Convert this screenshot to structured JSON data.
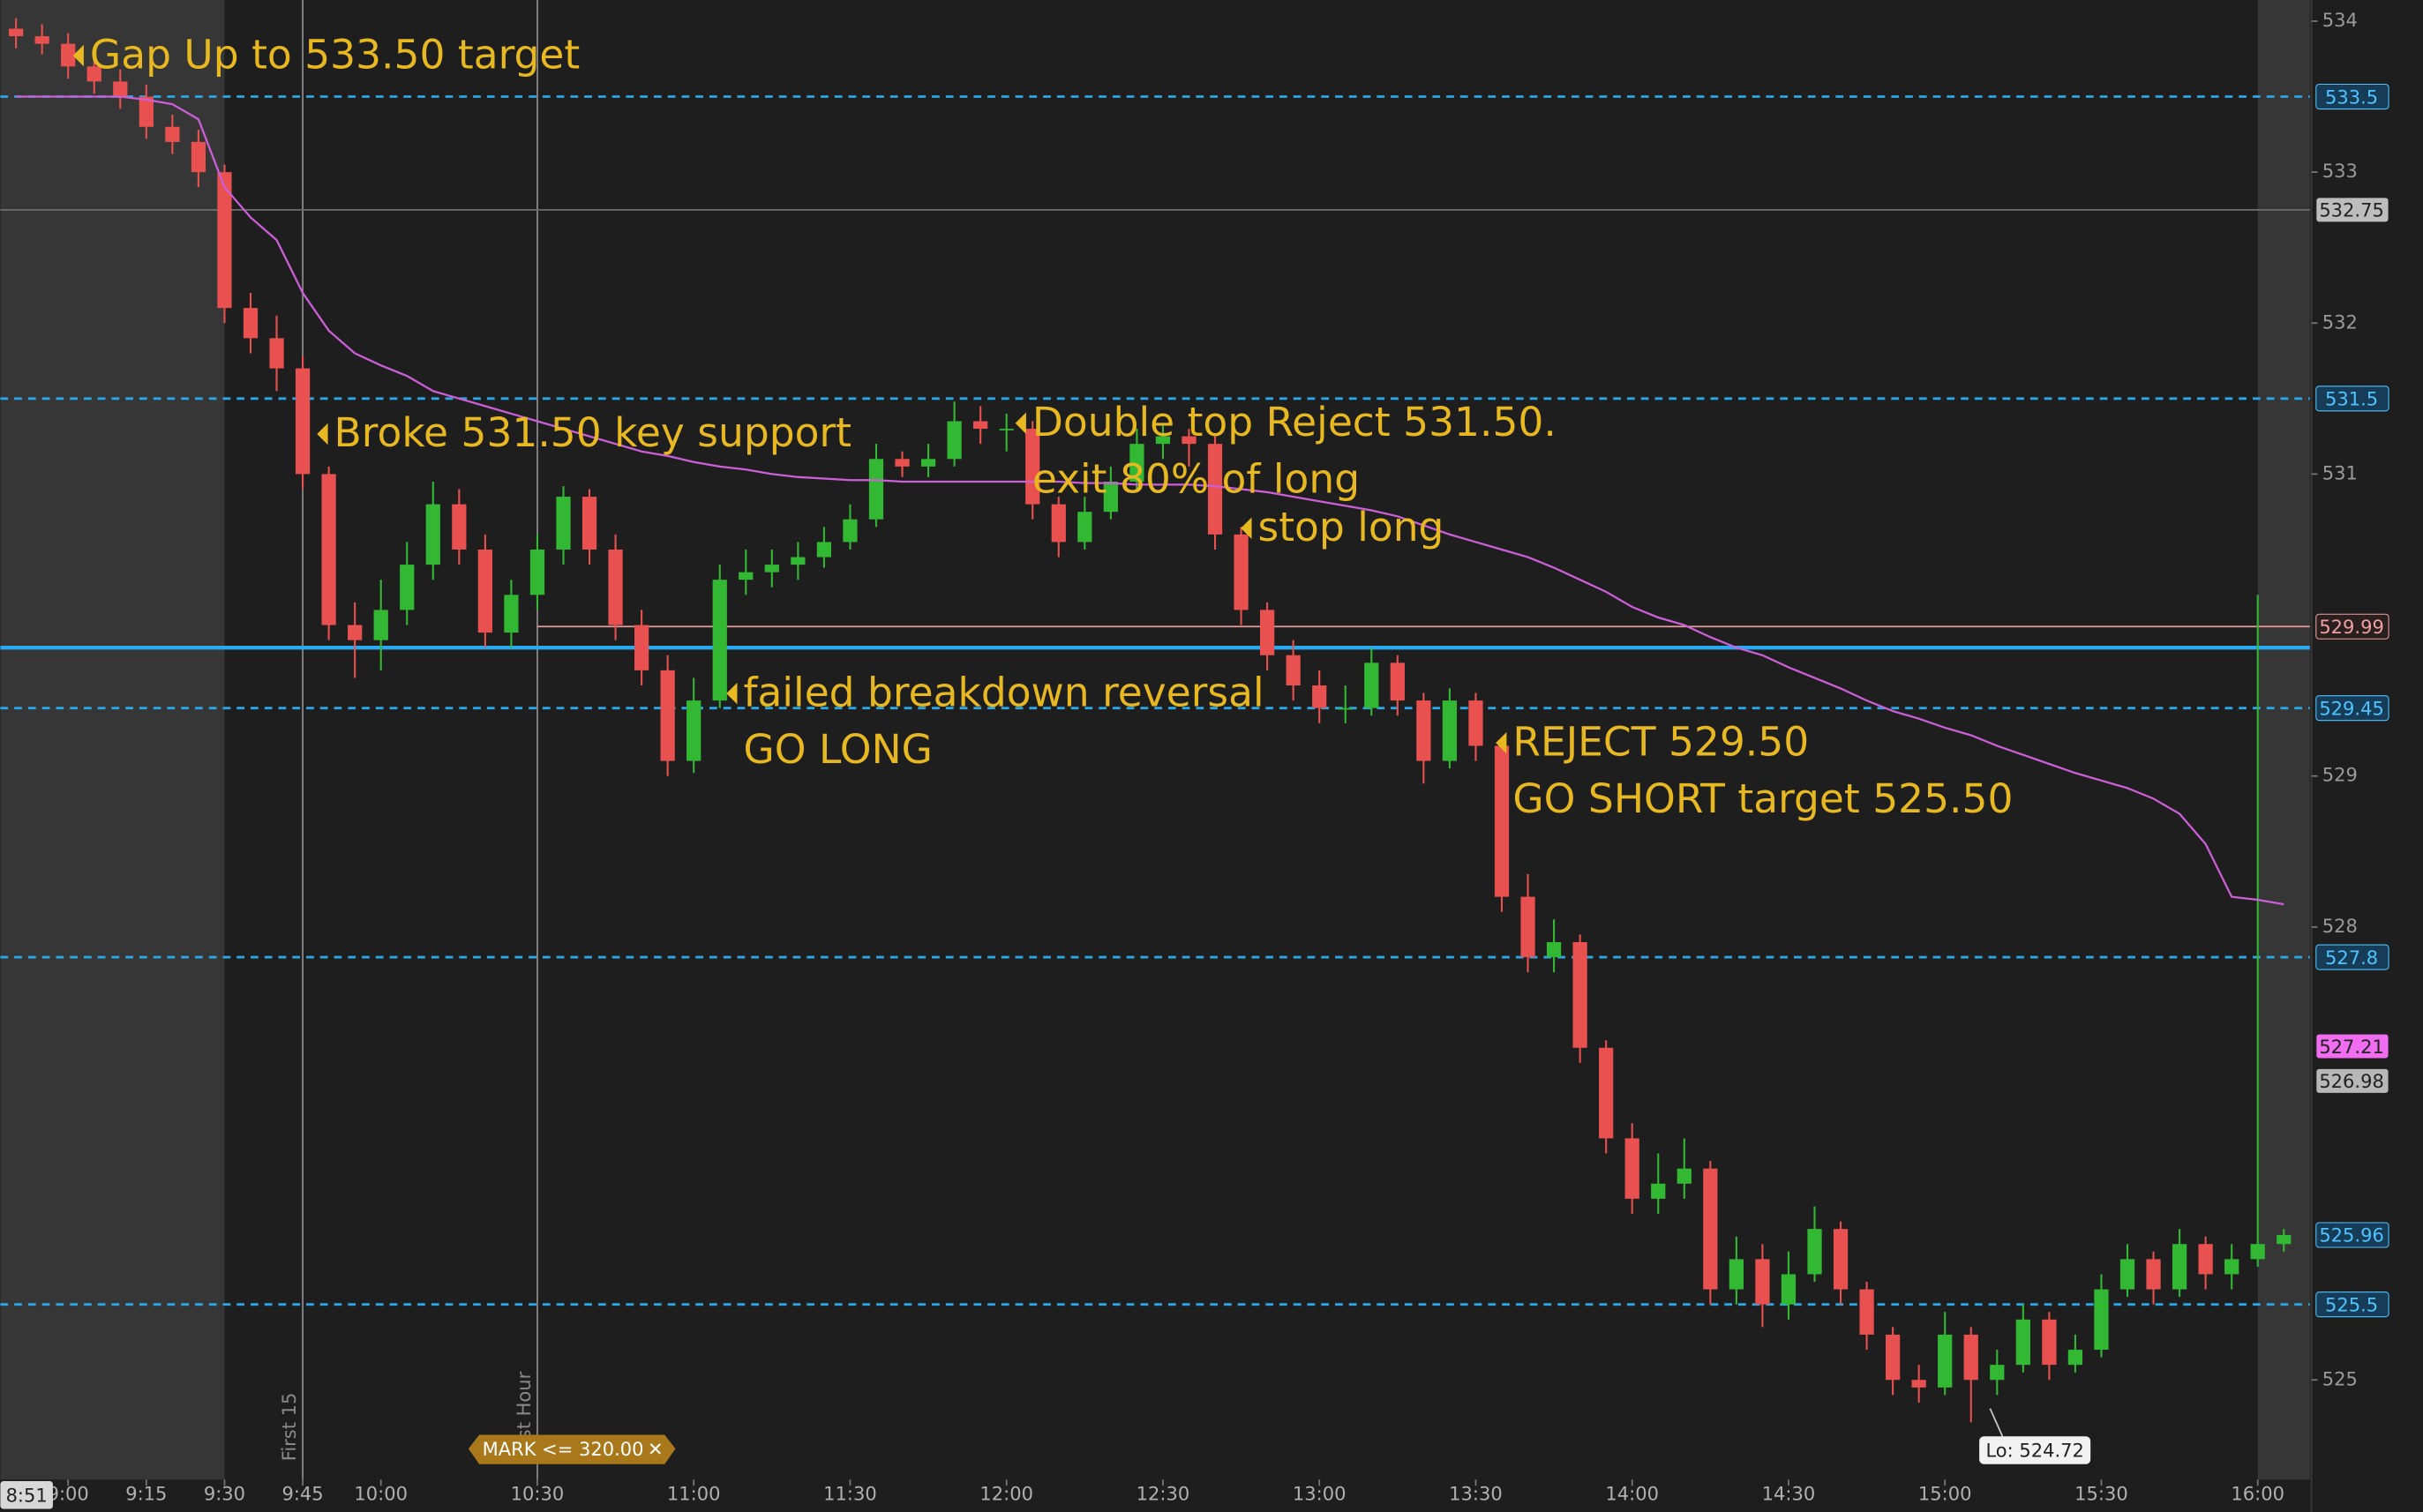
{
  "chart_data": {
    "type": "candlestick",
    "x": [
      "8:50",
      "8:55",
      "9:00",
      "9:05",
      "9:10",
      "9:15",
      "9:20",
      "9:25",
      "9:30",
      "9:35",
      "9:40",
      "9:45",
      "9:50",
      "9:55",
      "10:00",
      "10:05",
      "10:10",
      "10:15",
      "10:20",
      "10:25",
      "10:30",
      "10:35",
      "10:40",
      "10:45",
      "10:50",
      "10:55",
      "11:00",
      "11:05",
      "11:10",
      "11:15",
      "11:20",
      "11:25",
      "11:30",
      "11:35",
      "11:40",
      "11:45",
      "11:50",
      "11:55",
      "12:00",
      "12:05",
      "12:10",
      "12:15",
      "12:20",
      "12:25",
      "12:30",
      "12:35",
      "12:40",
      "12:45",
      "12:50",
      "12:55",
      "13:00",
      "13:05",
      "13:10",
      "13:15",
      "13:20",
      "13:25",
      "13:30",
      "13:35",
      "13:40",
      "13:45",
      "13:50",
      "13:55",
      "14:00",
      "14:05",
      "14:10",
      "14:15",
      "14:20",
      "14:25",
      "14:30",
      "14:35",
      "14:40",
      "14:45",
      "14:50",
      "14:55",
      "15:00",
      "15:05",
      "15:10",
      "15:15",
      "15:20",
      "15:25",
      "15:30",
      "15:35",
      "15:40",
      "15:45",
      "15:50",
      "15:55",
      "16:00",
      "16:05"
    ],
    "open": [
      533.95,
      533.9,
      533.85,
      533.7,
      533.6,
      533.5,
      533.3,
      533.2,
      533.0,
      532.1,
      531.9,
      531.7,
      531.0,
      530.0,
      529.9,
      530.1,
      530.4,
      530.8,
      530.5,
      529.95,
      530.2,
      530.5,
      530.85,
      530.5,
      530.0,
      529.7,
      529.1,
      529.5,
      530.3,
      530.35,
      530.4,
      530.45,
      530.55,
      530.7,
      531.1,
      531.05,
      531.1,
      531.35,
      531.3,
      531.3,
      530.8,
      530.55,
      530.75,
      530.95,
      531.2,
      531.25,
      531.2,
      530.6,
      530.1,
      529.8,
      529.6,
      529.45,
      529.45,
      529.75,
      529.5,
      529.1,
      529.5,
      529.2,
      528.2,
      527.8,
      527.9,
      527.2,
      526.6,
      526.2,
      526.3,
      526.4,
      525.6,
      525.8,
      525.5,
      525.7,
      526.0,
      525.6,
      525.3,
      525.0,
      524.95,
      525.3,
      525.0,
      525.1,
      525.4,
      525.1,
      525.2,
      525.6,
      525.8,
      525.6,
      525.9,
      525.7,
      525.8,
      525.9
    ],
    "high": [
      534.02,
      533.98,
      533.92,
      533.78,
      533.68,
      533.58,
      533.38,
      533.28,
      533.05,
      532.2,
      532.05,
      531.78,
      531.05,
      530.15,
      530.3,
      530.55,
      530.95,
      530.9,
      530.6,
      530.3,
      530.6,
      530.92,
      530.9,
      530.6,
      530.1,
      529.8,
      529.65,
      530.4,
      530.5,
      530.5,
      530.55,
      530.65,
      530.8,
      531.2,
      531.15,
      531.2,
      531.48,
      531.45,
      531.4,
      531.35,
      530.85,
      530.85,
      531.05,
      531.3,
      531.32,
      531.3,
      531.25,
      530.65,
      530.15,
      529.9,
      529.7,
      529.6,
      529.85,
      529.8,
      529.55,
      529.58,
      529.55,
      529.25,
      528.35,
      528.05,
      527.95,
      527.25,
      526.7,
      526.5,
      526.6,
      526.45,
      525.95,
      525.9,
      525.85,
      526.15,
      526.05,
      525.65,
      525.35,
      525.1,
      525.45,
      525.35,
      525.2,
      525.5,
      525.45,
      525.3,
      525.7,
      525.9,
      525.85,
      526.0,
      525.95,
      525.9,
      530.2,
      526.0
    ],
    "low": [
      533.82,
      533.78,
      533.62,
      533.52,
      533.42,
      533.22,
      533.12,
      532.9,
      532.0,
      531.8,
      531.55,
      530.9,
      529.9,
      529.65,
      529.7,
      530.0,
      530.3,
      530.4,
      529.85,
      529.85,
      530.1,
      530.4,
      530.4,
      529.9,
      529.6,
      529.0,
      529.02,
      529.45,
      530.2,
      530.25,
      530.3,
      530.38,
      530.5,
      530.65,
      530.98,
      530.98,
      531.05,
      531.2,
      531.15,
      530.7,
      530.45,
      530.5,
      530.7,
      530.9,
      531.1,
      531.05,
      530.5,
      530.0,
      529.7,
      529.5,
      529.35,
      529.35,
      529.4,
      529.4,
      528.95,
      529.05,
      529.1,
      528.1,
      527.7,
      527.7,
      527.1,
      526.5,
      526.1,
      526.1,
      526.2,
      525.5,
      525.5,
      525.35,
      525.4,
      525.65,
      525.5,
      525.2,
      524.9,
      524.85,
      524.9,
      524.72,
      524.9,
      525.05,
      525.0,
      525.05,
      525.15,
      525.55,
      525.5,
      525.55,
      525.6,
      525.6,
      525.75,
      525.85
    ],
    "close": [
      533.9,
      533.85,
      533.7,
      533.6,
      533.5,
      533.3,
      533.2,
      533.0,
      532.1,
      531.9,
      531.7,
      531.0,
      530.0,
      529.9,
      530.1,
      530.4,
      530.8,
      530.5,
      529.95,
      530.2,
      530.5,
      530.85,
      530.5,
      530.0,
      529.7,
      529.1,
      529.5,
      530.3,
      530.35,
      530.4,
      530.45,
      530.55,
      530.7,
      531.1,
      531.05,
      531.1,
      531.35,
      531.3,
      531.3,
      530.8,
      530.55,
      530.75,
      530.95,
      531.2,
      531.25,
      531.2,
      530.6,
      530.1,
      529.8,
      529.6,
      529.45,
      529.45,
      529.75,
      529.5,
      529.1,
      529.5,
      529.2,
      528.2,
      527.8,
      527.9,
      527.2,
      526.6,
      526.2,
      526.3,
      526.4,
      525.6,
      525.8,
      525.5,
      525.7,
      526.0,
      525.6,
      525.3,
      525.0,
      524.95,
      525.3,
      525.0,
      525.1,
      525.4,
      525.1,
      525.2,
      525.6,
      525.8,
      525.6,
      525.9,
      525.7,
      525.8,
      525.9,
      525.96
    ],
    "up_color": "#33b833",
    "down_color": "#e8514f",
    "overlays": [
      {
        "color": "#cc5fd8",
        "values": [
          533.5,
          533.5,
          533.5,
          533.5,
          533.5,
          533.48,
          533.45,
          533.35,
          532.9,
          532.7,
          532.55,
          532.2,
          531.95,
          531.8,
          531.72,
          531.65,
          531.55,
          531.5,
          531.45,
          531.4,
          531.35,
          531.3,
          531.25,
          531.2,
          531.15,
          531.12,
          531.08,
          531.05,
          531.03,
          531.0,
          530.98,
          530.97,
          530.96,
          530.96,
          530.95,
          530.95,
          530.95,
          530.95,
          530.95,
          530.95,
          530.95,
          530.94,
          530.94,
          530.93,
          530.93,
          530.93,
          530.92,
          530.9,
          530.88,
          530.85,
          530.82,
          530.79,
          530.76,
          530.72,
          530.66,
          530.6,
          530.55,
          530.5,
          530.45,
          530.38,
          530.3,
          530.22,
          530.12,
          530.05,
          530.0,
          529.92,
          529.85,
          529.8,
          529.72,
          529.65,
          529.58,
          529.5,
          529.43,
          529.38,
          529.32,
          529.27,
          529.2,
          529.14,
          529.08,
          529.02,
          528.97,
          528.92,
          528.85,
          528.75,
          528.55,
          528.2,
          528.18,
          528.15
        ]
      }
    ],
    "xlim": [
      "8:47",
      "16:10"
    ],
    "xticks": [
      "9:00",
      "9:15",
      "9:30",
      "9:45",
      "10:00",
      "10:30",
      "11:00",
      "11:30",
      "12:00",
      "12:30",
      "13:00",
      "13:30",
      "14:00",
      "14:30",
      "15:00",
      "15:30",
      "16:00"
    ],
    "ylim": [
      524.34,
      534.14
    ],
    "yticks": [
      525,
      528,
      529,
      531,
      532,
      533,
      534
    ],
    "shaded": [
      [
        "8:47",
        "9:30"
      ],
      [
        "16:00",
        "16:10"
      ]
    ],
    "vlines": [
      {
        "x": "9:45",
        "label": "First 15"
      },
      {
        "x": "10:30",
        "label": "First Hour"
      }
    ],
    "levels": [
      {
        "value": 533.5,
        "style": "dashed",
        "color": "#2aa7e6",
        "fill": "#163c57",
        "text_color": "#4fc3ff"
      },
      {
        "value": 532.75,
        "style": "thin",
        "color": "#6e6e6e",
        "fill": "#bdbdbd",
        "text_color": "#222222"
      },
      {
        "value": 531.5,
        "style": "dashed",
        "color": "#2aa7e6",
        "fill": "#163c57",
        "text_color": "#4fc3ff"
      },
      {
        "value": 529.99,
        "style": "thin",
        "color": "#e89a9a",
        "fill": "#2a1f1f",
        "text_color": "#f0a0a0",
        "from": "10:30"
      },
      {
        "value": 529.85,
        "style": "solid",
        "color": "#29a9ef",
        "show_label": false
      },
      {
        "value": 529.45,
        "style": "dashed",
        "color": "#2aa7e6",
        "fill": "#163c57",
        "text_color": "#4fc3ff"
      },
      {
        "value": 527.8,
        "style": "dashed",
        "color": "#2aa7e6",
        "fill": "#163c57",
        "text_color": "#4fc3ff"
      },
      {
        "value": 527.21,
        "style": "marker",
        "fill": "#f06cf0",
        "text_color": "#222222"
      },
      {
        "value": 526.98,
        "style": "marker",
        "fill": "#b8b8b8",
        "text_color": "#222222"
      },
      {
        "value": 525.96,
        "style": "marker",
        "fill": "#163c57",
        "text_color": "#4fc3ff"
      },
      {
        "value": 525.5,
        "style": "dashed",
        "color": "#2aa7e6",
        "fill": "#163c57",
        "text_color": "#4fc3ff"
      }
    ],
    "annotations": [
      {
        "lines": [
          "Gap Up to 533.50 target"
        ]
      },
      {
        "lines": [
          "Broke 531.50 key support"
        ]
      },
      {
        "lines": [
          "Double top Reject 531.50.",
          "exit 80% of long"
        ]
      },
      {
        "lines": [
          "stop long"
        ]
      },
      {
        "lines": [
          "failed breakdown reversal",
          "GO LONG"
        ]
      },
      {
        "lines": [
          "REJECT 529.50",
          "GO SHORT target 525.50"
        ]
      }
    ],
    "annotation_color": "#e8b820",
    "low_label": "Lo: 524.72",
    "mark_badge": "MARK <= 320.00",
    "cursor_time": "8:51"
  }
}
